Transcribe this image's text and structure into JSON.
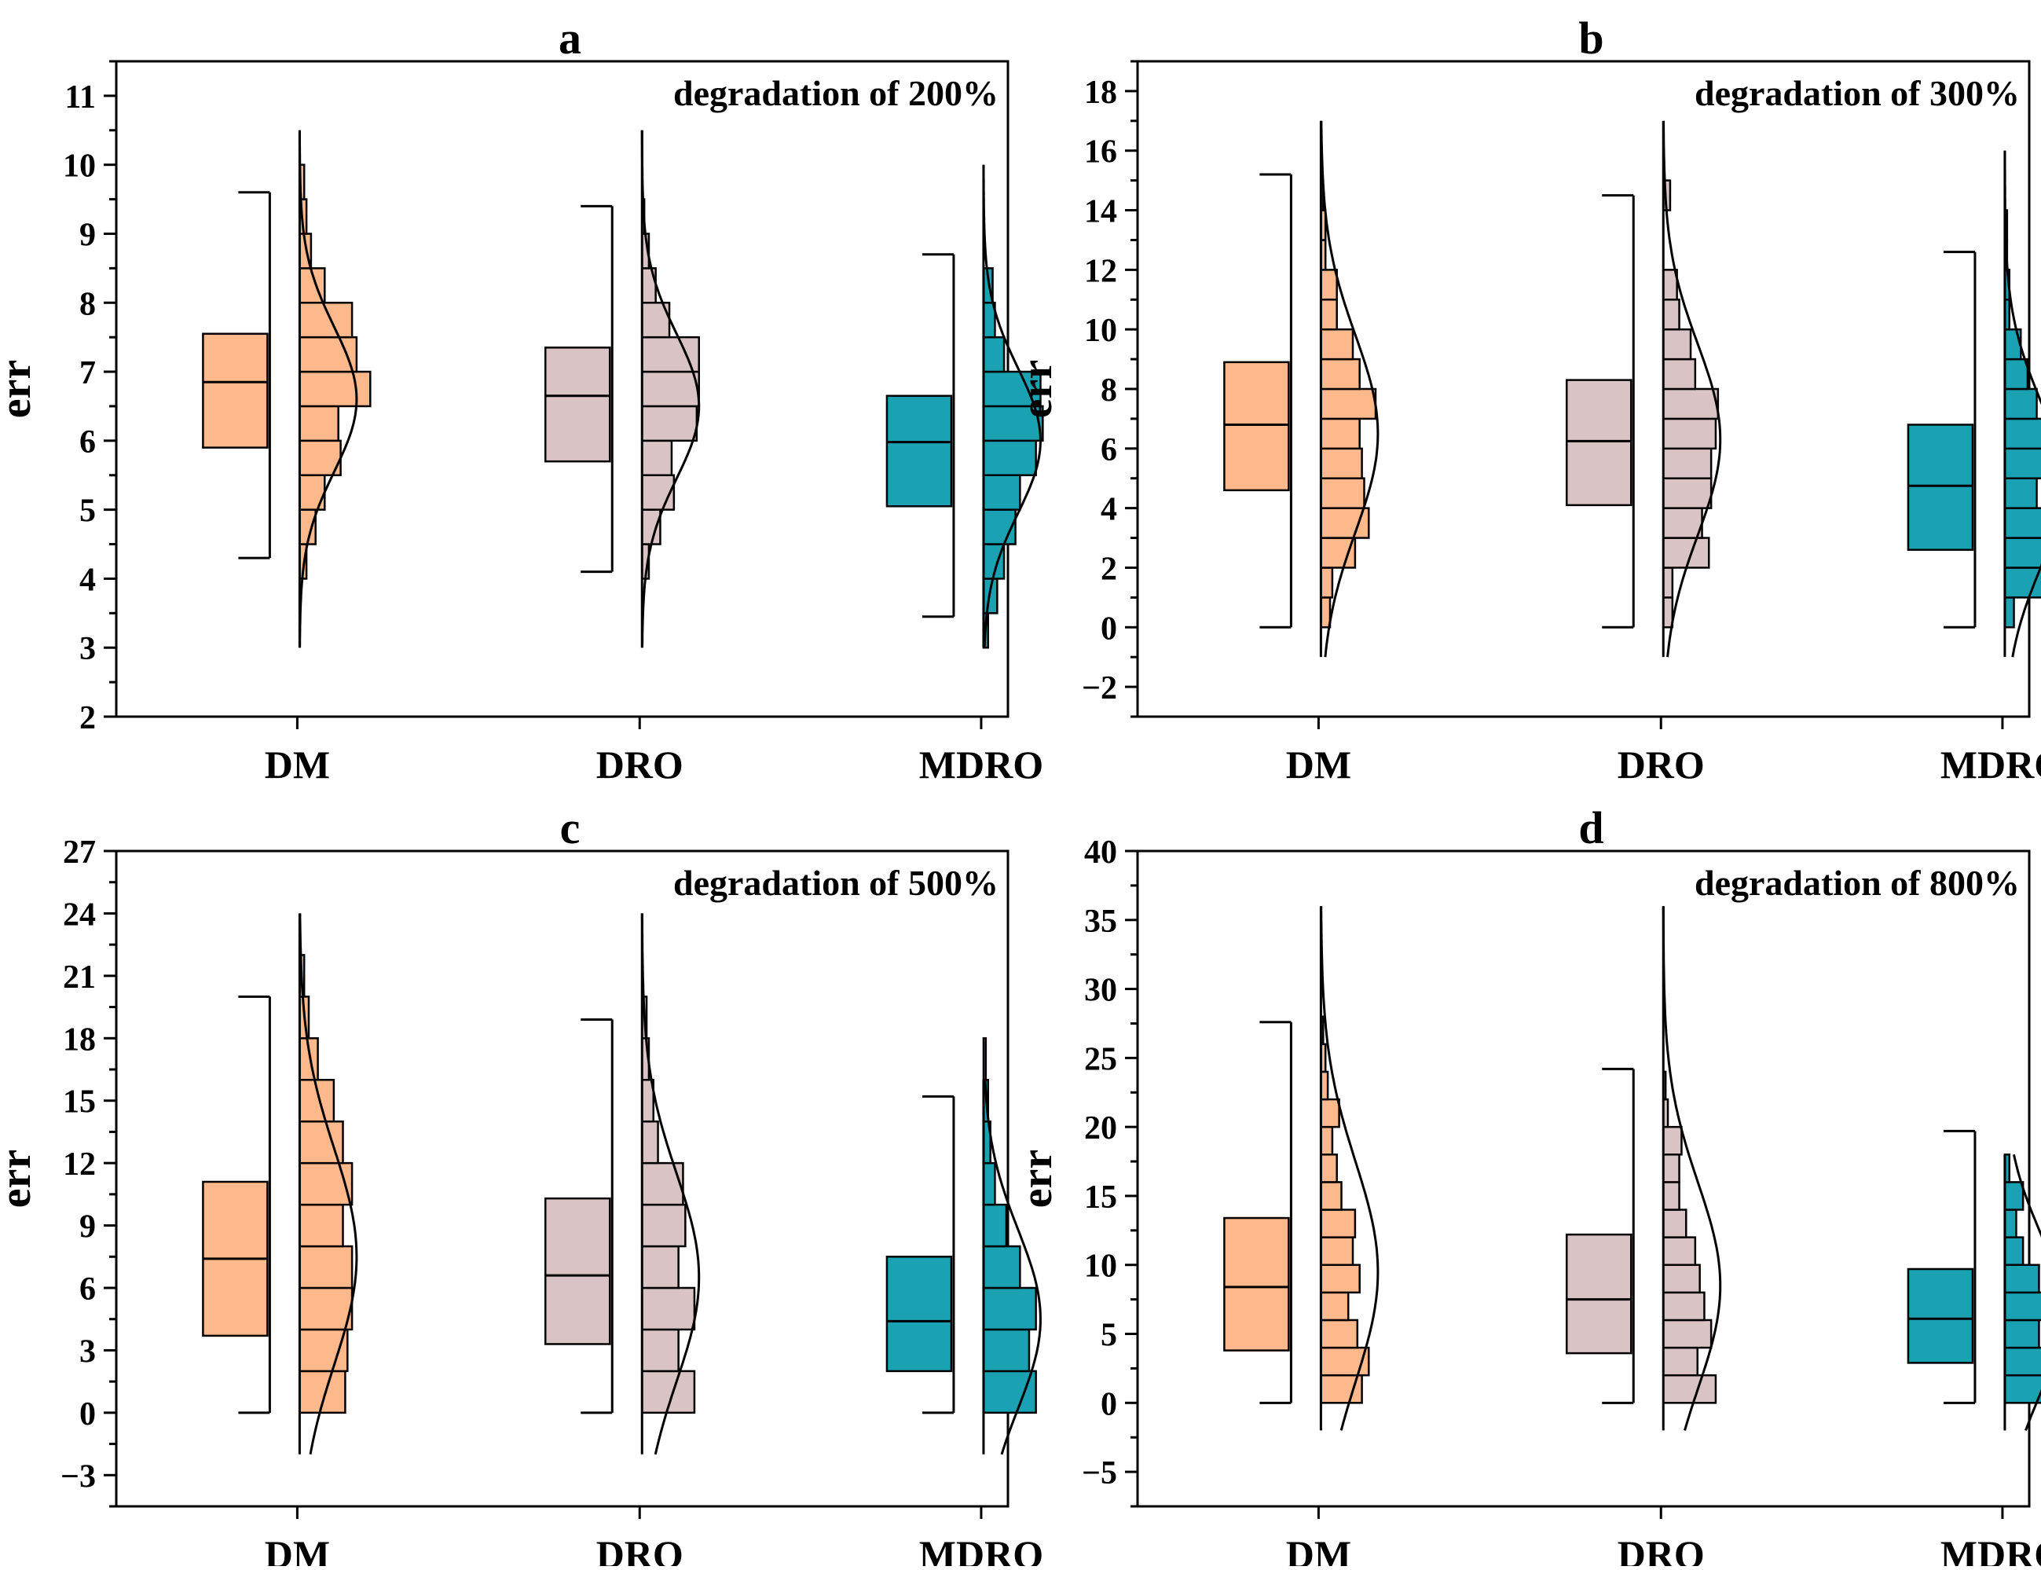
{
  "colors": {
    "DM": "#fdb98b",
    "DRO": "#d9c3c4",
    "MDRO": "#1aa2b2",
    "line": "#000000"
  },
  "chart_data": [
    {
      "id": "a",
      "type": "box-histogram",
      "panel_label": "a",
      "title": "degradation of 200%",
      "ylabel": "err",
      "ylim": [
        2,
        11.5
      ],
      "yticks": [
        2,
        3,
        4,
        5,
        6,
        7,
        8,
        9,
        10,
        11
      ],
      "categories": [
        "DM",
        "DRO",
        "MDRO"
      ],
      "series": [
        {
          "name": "DM",
          "box": {
            "whisker_low": 4.3,
            "q1": 5.9,
            "median": 6.85,
            "q3": 7.55,
            "whisker_high": 9.6
          },
          "hist_bin": 0.5,
          "hist": [
            [
              4,
              0.03
            ],
            [
              4.5,
              0.07
            ],
            [
              5,
              0.11
            ],
            [
              5.5,
              0.18
            ],
            [
              6,
              0.17
            ],
            [
              6.5,
              0.31
            ],
            [
              7,
              0.25
            ],
            [
              7.5,
              0.23
            ],
            [
              8,
              0.11
            ],
            [
              8.5,
              0.05
            ],
            [
              9,
              0.03
            ],
            [
              9.5,
              0.02
            ]
          ],
          "curve": {
            "mean": 6.6,
            "sd": 1.05,
            "range": [
              3,
              10.5
            ],
            "peak": 0.25
          }
        },
        {
          "name": "DRO",
          "box": {
            "whisker_low": 4.1,
            "q1": 5.7,
            "median": 6.65,
            "q3": 7.35,
            "whisker_high": 9.4
          },
          "hist_bin": 0.5,
          "hist": [
            [
              4,
              0.03
            ],
            [
              4.5,
              0.08
            ],
            [
              5,
              0.14
            ],
            [
              5.5,
              0.13
            ],
            [
              6,
              0.24
            ],
            [
              6.5,
              0.25
            ],
            [
              7,
              0.25
            ],
            [
              7.5,
              0.12
            ],
            [
              8,
              0.06
            ],
            [
              8.5,
              0.03
            ],
            [
              9,
              0.01
            ]
          ],
          "curve": {
            "mean": 6.5,
            "sd": 1.05,
            "range": [
              3,
              10.5
            ],
            "peak": 0.25
          }
        },
        {
          "name": "MDRO",
          "box": {
            "whisker_low": 3.45,
            "q1": 5.05,
            "median": 5.98,
            "q3": 6.65,
            "whisker_high": 8.7
          },
          "hist_bin": 0.5,
          "hist": [
            [
              3,
              0.02
            ],
            [
              3.5,
              0.06
            ],
            [
              4,
              0.09
            ],
            [
              4.5,
              0.14
            ],
            [
              5,
              0.16
            ],
            [
              5.5,
              0.23
            ],
            [
              6,
              0.26
            ],
            [
              6.5,
              0.25
            ],
            [
              7,
              0.09
            ],
            [
              7.5,
              0.05
            ],
            [
              8,
              0.04
            ]
          ],
          "curve": {
            "mean": 6.0,
            "sd": 1.05,
            "range": [
              3,
              10
            ],
            "peak": 0.25
          }
        }
      ]
    },
    {
      "id": "b",
      "type": "box-histogram",
      "panel_label": "b",
      "title": "degradation of 300%",
      "ylabel": "err",
      "ylim": [
        -3,
        19
      ],
      "yticks": [
        -2,
        0,
        2,
        4,
        6,
        8,
        10,
        12,
        14,
        16,
        18
      ],
      "categories": [
        "DM",
        "DRO",
        "MDRO"
      ],
      "series": [
        {
          "name": "DM",
          "box": {
            "whisker_low": 0,
            "q1": 4.6,
            "median": 6.8,
            "q3": 8.9,
            "whisker_high": 15.2
          },
          "hist_bin": 1,
          "hist": [
            [
              0,
              0.04
            ],
            [
              1,
              0.05
            ],
            [
              2,
              0.15
            ],
            [
              3,
              0.21
            ],
            [
              4,
              0.19
            ],
            [
              5,
              0.18
            ],
            [
              6,
              0.17
            ],
            [
              7,
              0.24
            ],
            [
              8,
              0.17
            ],
            [
              9,
              0.14
            ],
            [
              10,
              0.07
            ],
            [
              11,
              0.07
            ],
            [
              12,
              0.02
            ],
            [
              13,
              0.02
            ],
            [
              14,
              0.01
            ]
          ],
          "curve": {
            "mean": 6.5,
            "sd": 3.3,
            "range": [
              -1,
              17
            ],
            "peak": 0.25
          }
        },
        {
          "name": "DRO",
          "box": {
            "whisker_low": 0,
            "q1": 4.1,
            "median": 6.25,
            "q3": 8.3,
            "whisker_high": 14.5
          },
          "hist_bin": 1,
          "hist": [
            [
              0,
              0.04
            ],
            [
              1,
              0.04
            ],
            [
              2,
              0.2
            ],
            [
              3,
              0.17
            ],
            [
              4,
              0.21
            ],
            [
              5,
              0.21
            ],
            [
              6,
              0.23
            ],
            [
              7,
              0.24
            ],
            [
              8,
              0.14
            ],
            [
              9,
              0.12
            ],
            [
              10,
              0.07
            ],
            [
              11,
              0.06
            ],
            [
              14,
              0.03
            ]
          ],
          "curve": {
            "mean": 6.3,
            "sd": 3.2,
            "range": [
              -1,
              17
            ],
            "peak": 0.25
          }
        },
        {
          "name": "MDRO",
          "box": {
            "whisker_low": 0,
            "q1": 2.6,
            "median": 4.75,
            "q3": 6.8,
            "whisker_high": 12.6
          },
          "hist_bin": 1,
          "hist": [
            [
              0,
              0.04
            ],
            [
              1,
              0.17
            ],
            [
              2,
              0.21
            ],
            [
              3,
              0.2
            ],
            [
              4,
              0.14
            ],
            [
              5,
              0.25
            ],
            [
              6,
              0.21
            ],
            [
              7,
              0.14
            ],
            [
              8,
              0.1
            ],
            [
              9,
              0.07
            ],
            [
              10,
              0.02
            ],
            [
              11,
              0.02
            ],
            [
              12,
              0.01
            ],
            [
              13,
              0.01
            ]
          ],
          "curve": {
            "mean": 4.8,
            "sd": 2.9,
            "range": [
              -1,
              16
            ],
            "peak": 0.25
          }
        }
      ]
    },
    {
      "id": "c",
      "type": "box-histogram",
      "panel_label": "c",
      "title": "degradation of 500%",
      "ylabel": "err",
      "ylim": [
        -4.5,
        27
      ],
      "yticks": [
        -3,
        0,
        3,
        6,
        9,
        12,
        15,
        18,
        21,
        24,
        27
      ],
      "categories": [
        "DM",
        "DRO",
        "MDRO"
      ],
      "series": [
        {
          "name": "DM",
          "box": {
            "whisker_low": 0,
            "q1": 3.7,
            "median": 7.4,
            "q3": 11.1,
            "whisker_high": 20
          },
          "hist_bin": 2,
          "hist": [
            [
              0,
              0.2
            ],
            [
              2,
              0.21
            ],
            [
              4,
              0.23
            ],
            [
              6,
              0.23
            ],
            [
              8,
              0.19
            ],
            [
              10,
              0.23
            ],
            [
              12,
              0.19
            ],
            [
              14,
              0.15
            ],
            [
              16,
              0.08
            ],
            [
              18,
              0.04
            ],
            [
              20,
              0.02
            ]
          ],
          "curve": {
            "mean": 7.5,
            "sd": 5.2,
            "range": [
              -2,
              24
            ],
            "peak": 0.25
          }
        },
        {
          "name": "DRO",
          "box": {
            "whisker_low": 0,
            "q1": 3.3,
            "median": 6.6,
            "q3": 10.3,
            "whisker_high": 18.9
          },
          "hist_bin": 2,
          "hist": [
            [
              0,
              0.23
            ],
            [
              2,
              0.16
            ],
            [
              4,
              0.23
            ],
            [
              6,
              0.16
            ],
            [
              8,
              0.19
            ],
            [
              10,
              0.18
            ],
            [
              12,
              0.07
            ],
            [
              14,
              0.05
            ],
            [
              16,
              0.03
            ],
            [
              18,
              0.02
            ]
          ],
          "curve": {
            "mean": 6.5,
            "sd": 5.0,
            "range": [
              -2,
              24
            ],
            "peak": 0.25
          }
        },
        {
          "name": "MDRO",
          "box": {
            "whisker_low": 0,
            "q1": 2.0,
            "median": 4.4,
            "q3": 7.5,
            "whisker_high": 15.2
          },
          "hist_bin": 2,
          "hist": [
            [
              0,
              0.23
            ],
            [
              2,
              0.2
            ],
            [
              4,
              0.23
            ],
            [
              6,
              0.16
            ],
            [
              8,
              0.1
            ],
            [
              10,
              0.05
            ],
            [
              12,
              0.03
            ],
            [
              14,
              0.02
            ],
            [
              16,
              0.01
            ]
          ],
          "curve": {
            "mean": 4.5,
            "sd": 4.3,
            "range": [
              -2,
              16
            ],
            "peak": 0.25
          }
        }
      ]
    },
    {
      "id": "d",
      "type": "box-histogram",
      "panel_label": "d",
      "title": "degradation of 800%",
      "ylabel": "err",
      "ylim": [
        -7.5,
        40
      ],
      "yticks": [
        -5,
        0,
        5,
        10,
        15,
        20,
        25,
        30,
        35,
        40
      ],
      "categories": [
        "DM",
        "DRO",
        "MDRO"
      ],
      "series": [
        {
          "name": "DM",
          "box": {
            "whisker_low": 0,
            "q1": 3.8,
            "median": 8.4,
            "q3": 13.4,
            "whisker_high": 27.6
          },
          "hist_bin": 2,
          "hist": [
            [
              0,
              0.18
            ],
            [
              2,
              0.21
            ],
            [
              4,
              0.16
            ],
            [
              6,
              0.12
            ],
            [
              8,
              0.17
            ],
            [
              10,
              0.14
            ],
            [
              12,
              0.15
            ],
            [
              14,
              0.09
            ],
            [
              16,
              0.07
            ],
            [
              18,
              0.05
            ],
            [
              20,
              0.08
            ],
            [
              22,
              0.03
            ],
            [
              24,
              0.02
            ],
            [
              26,
              0.01
            ]
          ],
          "curve": {
            "mean": 9.5,
            "sd": 8.0,
            "range": [
              -2,
              36
            ],
            "peak": 0.25
          }
        },
        {
          "name": "DRO",
          "box": {
            "whisker_low": 0,
            "q1": 3.6,
            "median": 7.5,
            "q3": 12.2,
            "whisker_high": 24.2
          },
          "hist_bin": 2,
          "hist": [
            [
              0,
              0.23
            ],
            [
              2,
              0.15
            ],
            [
              4,
              0.21
            ],
            [
              6,
              0.18
            ],
            [
              8,
              0.16
            ],
            [
              10,
              0.14
            ],
            [
              12,
              0.1
            ],
            [
              14,
              0.07
            ],
            [
              16,
              0.07
            ],
            [
              18,
              0.08
            ],
            [
              20,
              0.02
            ],
            [
              22,
              0.01
            ]
          ],
          "curve": {
            "mean": 8.5,
            "sd": 7.5,
            "range": [
              -2,
              36
            ],
            "peak": 0.25
          }
        },
        {
          "name": "MDRO",
          "box": {
            "whisker_low": 0,
            "q1": 2.9,
            "median": 6.1,
            "q3": 9.7,
            "whisker_high": 19.7
          },
          "hist_bin": 2,
          "hist": [
            [
              0,
              0.2
            ],
            [
              2,
              0.23
            ],
            [
              4,
              0.15
            ],
            [
              6,
              0.17
            ],
            [
              8,
              0.15
            ],
            [
              10,
              0.08
            ],
            [
              12,
              0.05
            ],
            [
              14,
              0.08
            ],
            [
              16,
              0.02
            ]
          ],
          "curve": {
            "mean": 6.5,
            "sd": 6.0,
            "range": [
              -2,
              18
            ],
            "peak": 0.25
          }
        }
      ]
    }
  ]
}
